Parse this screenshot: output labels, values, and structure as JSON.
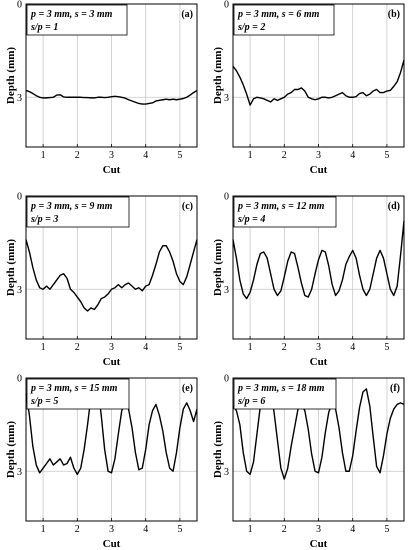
{
  "figure": {
    "panels_order": [
      "(a)",
      "(b)",
      "(c)",
      "(d)",
      "(e)",
      "(f)"
    ]
  },
  "chart_data": [
    {
      "type": "line",
      "panel_label": "(a)",
      "info_line1": "p = 3 mm, s = 3 mm",
      "info_line2": "s/p = 1",
      "xlabel": "Cut",
      "ylabel": "Depth (mm)",
      "xlim": [
        0.5,
        5.5
      ],
      "ylim": [
        4.6,
        0
      ],
      "xticks": [
        1,
        2,
        3,
        4,
        5
      ],
      "yticks": [
        0,
        3
      ],
      "grid": true,
      "x": [
        0.5,
        0.6,
        0.7,
        0.8,
        0.9,
        1.0,
        1.1,
        1.2,
        1.3,
        1.4,
        1.5,
        1.6,
        1.7,
        1.8,
        1.9,
        2.0,
        2.1,
        2.2,
        2.3,
        2.4,
        2.5,
        2.6,
        2.7,
        2.8,
        2.9,
        3.0,
        3.1,
        3.2,
        3.3,
        3.4,
        3.5,
        3.6,
        3.7,
        3.8,
        3.9,
        4.0,
        4.1,
        4.2,
        4.3,
        4.4,
        4.5,
        4.6,
        4.7,
        4.8,
        4.9,
        5.0,
        5.1,
        5.2,
        5.3,
        5.4,
        5.5
      ],
      "y": [
        2.78,
        2.82,
        2.88,
        2.95,
        3.0,
        3.02,
        3.02,
        3.01,
        3.0,
        2.93,
        2.92,
        2.99,
        3.0,
        3.0,
        3.0,
        3.0,
        3.0,
        3.01,
        3.01,
        3.02,
        3.02,
        3.0,
        3.0,
        3.01,
        3.0,
        2.98,
        2.97,
        2.98,
        3.0,
        3.03,
        3.08,
        3.12,
        3.16,
        3.2,
        3.22,
        3.22,
        3.2,
        3.18,
        3.12,
        3.1,
        3.08,
        3.06,
        3.08,
        3.06,
        3.08,
        3.06,
        3.04,
        3.0,
        2.93,
        2.85,
        2.78
      ]
    },
    {
      "type": "line",
      "panel_label": "(b)",
      "info_line1": "p = 3 mm, s = 6 mm",
      "info_line2": "s/p = 2",
      "xlabel": "Cut",
      "ylabel": "Depth (mm)",
      "xlim": [
        0.5,
        5.5
      ],
      "ylim": [
        4.6,
        0
      ],
      "xticks": [
        1,
        2,
        3,
        4,
        5
      ],
      "yticks": [
        0,
        3
      ],
      "grid": true,
      "x": [
        0.5,
        0.6,
        0.7,
        0.8,
        0.9,
        1.0,
        1.1,
        1.2,
        1.3,
        1.4,
        1.5,
        1.6,
        1.7,
        1.8,
        1.9,
        2.0,
        2.1,
        2.2,
        2.3,
        2.4,
        2.5,
        2.6,
        2.7,
        2.8,
        2.9,
        3.0,
        3.1,
        3.2,
        3.3,
        3.4,
        3.5,
        3.6,
        3.7,
        3.8,
        3.9,
        4.0,
        4.1,
        4.2,
        4.3,
        4.4,
        4.5,
        4.6,
        4.7,
        4.8,
        4.9,
        5.0,
        5.1,
        5.2,
        5.3,
        5.4,
        5.5
      ],
      "y": [
        2.0,
        2.15,
        2.35,
        2.6,
        2.9,
        3.25,
        3.05,
        3.0,
        3.02,
        3.05,
        3.1,
        3.15,
        3.05,
        3.1,
        3.05,
        3.0,
        2.9,
        2.85,
        2.75,
        2.75,
        2.7,
        2.8,
        3.0,
        3.05,
        3.08,
        3.05,
        3.0,
        3.0,
        3.02,
        3.0,
        2.95,
        2.9,
        2.85,
        2.95,
        3.0,
        3.0,
        2.98,
        2.88,
        2.85,
        2.95,
        2.9,
        2.8,
        2.75,
        2.85,
        2.85,
        2.8,
        2.78,
        2.65,
        2.5,
        2.2,
        1.8
      ]
    },
    {
      "type": "line",
      "panel_label": "(c)",
      "info_line1": "p = 3 mm, s = 9 mm",
      "info_line2": "s/p = 3",
      "xlabel": "Cut",
      "ylabel": "Depth (mm)",
      "xlim": [
        0.5,
        5.5
      ],
      "ylim": [
        4.6,
        0
      ],
      "xticks": [
        1,
        2,
        3,
        4,
        5
      ],
      "yticks": [
        0,
        3
      ],
      "grid": true,
      "x": [
        0.5,
        0.6,
        0.7,
        0.8,
        0.9,
        1.0,
        1.1,
        1.2,
        1.3,
        1.4,
        1.5,
        1.6,
        1.7,
        1.8,
        1.9,
        2.0,
        2.1,
        2.2,
        2.3,
        2.4,
        2.5,
        2.6,
        2.7,
        2.8,
        2.9,
        3.0,
        3.1,
        3.2,
        3.3,
        3.4,
        3.5,
        3.6,
        3.7,
        3.8,
        3.9,
        4.0,
        4.1,
        4.2,
        4.3,
        4.4,
        4.5,
        4.6,
        4.7,
        4.8,
        4.9,
        5.0,
        5.1,
        5.2,
        5.3,
        5.4,
        5.5
      ],
      "y": [
        1.4,
        1.8,
        2.3,
        2.7,
        2.95,
        3.0,
        2.9,
        3.0,
        2.85,
        2.7,
        2.55,
        2.5,
        2.65,
        3.0,
        3.1,
        3.25,
        3.4,
        3.6,
        3.7,
        3.6,
        3.65,
        3.5,
        3.3,
        3.25,
        3.15,
        3.0,
        2.95,
        2.85,
        2.95,
        2.85,
        2.8,
        2.9,
        3.0,
        2.95,
        3.05,
        2.9,
        2.85,
        2.55,
        2.2,
        1.8,
        1.6,
        1.6,
        1.8,
        2.1,
        2.5,
        2.75,
        2.85,
        2.6,
        2.2,
        1.8,
        1.4
      ]
    },
    {
      "type": "line",
      "panel_label": "(d)",
      "info_line1": "p = 3 mm, s = 12 mm",
      "info_line2": "s/p = 4",
      "xlabel": "Cut",
      "ylabel": "Depth (mm)",
      "xlim": [
        0.5,
        5.5
      ],
      "ylim": [
        4.6,
        0
      ],
      "xticks": [
        1,
        2,
        3,
        4,
        5
      ],
      "yticks": [
        0,
        3
      ],
      "grid": true,
      "x": [
        0.5,
        0.6,
        0.7,
        0.8,
        0.9,
        1.0,
        1.1,
        1.2,
        1.3,
        1.4,
        1.5,
        1.6,
        1.7,
        1.8,
        1.9,
        2.0,
        2.1,
        2.2,
        2.3,
        2.4,
        2.5,
        2.6,
        2.7,
        2.8,
        2.9,
        3.0,
        3.1,
        3.2,
        3.3,
        3.4,
        3.5,
        3.6,
        3.7,
        3.8,
        3.9,
        4.0,
        4.1,
        4.2,
        4.3,
        4.4,
        4.5,
        4.6,
        4.7,
        4.8,
        4.9,
        5.0,
        5.1,
        5.2,
        5.3,
        5.4,
        5.5
      ],
      "y": [
        1.4,
        2.0,
        2.7,
        3.15,
        3.3,
        3.1,
        2.7,
        2.2,
        1.85,
        1.8,
        2.0,
        2.5,
        3.0,
        3.2,
        3.05,
        2.6,
        2.1,
        1.8,
        1.85,
        2.3,
        2.8,
        3.2,
        3.25,
        3.0,
        2.5,
        2.05,
        1.75,
        1.8,
        2.25,
        2.85,
        3.2,
        3.05,
        2.7,
        2.2,
        1.95,
        1.75,
        2.0,
        2.55,
        3.0,
        3.2,
        3.0,
        2.5,
        2.0,
        1.75,
        2.0,
        2.5,
        3.0,
        3.2,
        2.9,
        1.9,
        0.8
      ]
    },
    {
      "type": "line",
      "panel_label": "(e)",
      "info_line1": "p = 3 mm, s = 15 mm",
      "info_line2": "s/p = 5",
      "xlabel": "Cut",
      "ylabel": "Depth (mm)",
      "xlim": [
        0.5,
        5.5
      ],
      "ylim": [
        4.6,
        0
      ],
      "xticks": [
        1,
        2,
        3,
        4,
        5
      ],
      "yticks": [
        0,
        3
      ],
      "grid": true,
      "x": [
        0.5,
        0.6,
        0.7,
        0.8,
        0.9,
        1.0,
        1.1,
        1.2,
        1.3,
        1.4,
        1.5,
        1.6,
        1.7,
        1.8,
        1.9,
        2.0,
        2.1,
        2.2,
        2.3,
        2.4,
        2.5,
        2.6,
        2.7,
        2.8,
        2.9,
        3.0,
        3.1,
        3.2,
        3.3,
        3.4,
        3.5,
        3.6,
        3.7,
        3.8,
        3.9,
        4.0,
        4.1,
        4.2,
        4.3,
        4.4,
        4.5,
        4.6,
        4.7,
        4.8,
        4.9,
        5.0,
        5.1,
        5.2,
        5.3,
        5.4,
        5.5
      ],
      "y": [
        0.5,
        1.2,
        2.2,
        2.8,
        3.05,
        2.9,
        2.75,
        2.6,
        2.8,
        2.7,
        2.6,
        2.8,
        2.75,
        2.55,
        2.9,
        3.1,
        2.9,
        2.3,
        1.5,
        0.6,
        0.15,
        0.3,
        1.2,
        2.3,
        3.0,
        3.05,
        2.6,
        1.8,
        1.05,
        0.75,
        1.0,
        1.6,
        2.4,
        2.95,
        2.9,
        2.3,
        1.5,
        1.05,
        0.85,
        1.2,
        1.7,
        2.4,
        2.9,
        3.0,
        2.4,
        1.6,
        1.0,
        0.8,
        1.05,
        1.4,
        1.0
      ]
    },
    {
      "type": "line",
      "panel_label": "(f)",
      "info_line1": "p = 3 mm, s = 18 mm",
      "info_line2": "s/p = 6",
      "xlabel": "Cut",
      "ylabel": "Depth (mm)",
      "xlim": [
        0.5,
        5.5
      ],
      "ylim": [
        4.6,
        0
      ],
      "xticks": [
        1,
        2,
        3,
        4,
        5
      ],
      "yticks": [
        0,
        3
      ],
      "grid": true,
      "x": [
        0.5,
        0.6,
        0.7,
        0.8,
        0.9,
        1.0,
        1.1,
        1.2,
        1.3,
        1.4,
        1.5,
        1.6,
        1.7,
        1.8,
        1.9,
        2.0,
        2.1,
        2.2,
        2.3,
        2.4,
        2.5,
        2.6,
        2.7,
        2.8,
        2.9,
        3.0,
        3.1,
        3.2,
        3.3,
        3.4,
        3.5,
        3.6,
        3.7,
        3.8,
        3.9,
        4.0,
        4.1,
        4.2,
        4.3,
        4.4,
        4.5,
        4.6,
        4.7,
        4.8,
        4.9,
        5.0,
        5.1,
        5.2,
        5.3,
        5.4,
        5.5
      ],
      "y": [
        0.9,
        1.05,
        1.5,
        2.4,
        3.0,
        3.1,
        2.7,
        1.8,
        0.9,
        0.35,
        0.05,
        0.3,
        1.1,
        2.0,
        2.9,
        3.25,
        2.9,
        2.2,
        1.6,
        1.0,
        0.85,
        1.05,
        1.65,
        2.45,
        3.0,
        3.05,
        2.55,
        1.75,
        1.1,
        0.8,
        1.0,
        1.6,
        2.4,
        3.0,
        3.0,
        2.5,
        1.7,
        0.95,
        0.45,
        0.35,
        0.9,
        1.9,
        2.85,
        3.05,
        2.5,
        1.8,
        1.3,
        1.0,
        0.85,
        0.8,
        0.85
      ]
    }
  ]
}
